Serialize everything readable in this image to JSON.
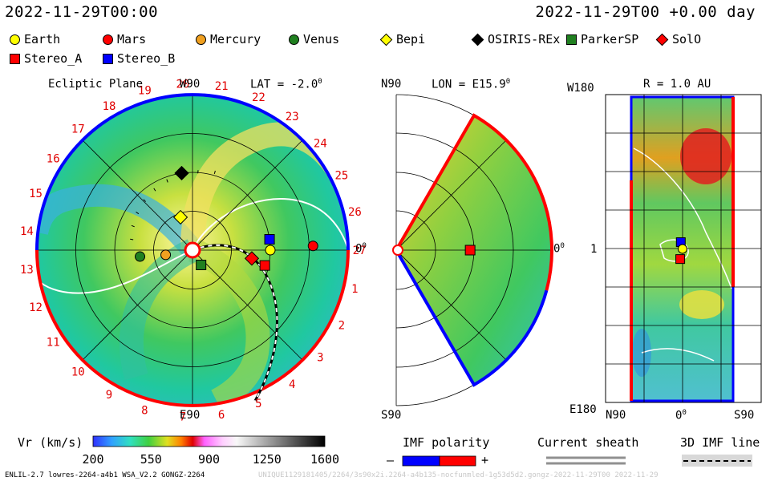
{
  "header": {
    "datetime": "2022-11-29T00:00",
    "relative": "2022-11-29T00 +0.00 day"
  },
  "legend": [
    {
      "name": "Earth",
      "shape": "circle",
      "color": "#ffff00"
    },
    {
      "name": "Mars",
      "shape": "circle",
      "color": "#ff0000"
    },
    {
      "name": "Mercury",
      "shape": "circle",
      "color": "#f0a020"
    },
    {
      "name": "Venus",
      "shape": "circle",
      "color": "#208020"
    },
    {
      "name": "Bepi",
      "shape": "diamond",
      "color": "#ffff00"
    },
    {
      "name": "OSIRIS-REx",
      "shape": "diamond",
      "color": "#000000"
    },
    {
      "name": "ParkerSP",
      "shape": "square",
      "color": "#208020"
    },
    {
      "name": "SolO",
      "shape": "diamond",
      "color": "#ff0000"
    },
    {
      "name": "Stereo_A",
      "shape": "square",
      "color": "#ff0000"
    },
    {
      "name": "Stereo_B",
      "shape": "square",
      "color": "#0000ff"
    }
  ],
  "panels": {
    "ecliptic": {
      "title": "Ecliptic Plane",
      "lat": "LAT = -2.0",
      "deg": "0",
      "top_label": "W90",
      "bottom_label": "E90",
      "right_label": "0",
      "right_sup": "0"
    },
    "meridional": {
      "top_label": "N90",
      "lon": "LON = E15.9",
      "deg": "0",
      "bottom_label": "S90",
      "right_label": "0",
      "right_sup": "0"
    },
    "map": {
      "top_left": "W180",
      "title": "R = 1.0 AU",
      "left_mid": "1",
      "bottom_left": "E180",
      "x_left": "N90",
      "x_mid": "0",
      "x_mid_sup": "0",
      "x_right": "S90"
    }
  },
  "colorbar": {
    "label": "Vr (km/s)",
    "ticks": [
      "200",
      "550",
      "900",
      "1250",
      "1600"
    ]
  },
  "imf": {
    "title": "IMF polarity",
    "minus": "–",
    "plus": "+"
  },
  "sheath": {
    "title": "Current sheath"
  },
  "imfline": {
    "title": "3D IMF line"
  },
  "footer": {
    "left": "ENLIL-2.7 lowres-2264-a4b1 WSA_V2.2 GONGZ-2264",
    "right": "UNIQUE1129181405/2264/3s90x2i.2264-a4b135-nocfunmled-1g53d5d2.gongz-2022-11-29T00   2022-11-29"
  },
  "chart_data": [
    {
      "type": "polar-heatmap",
      "title": "Ecliptic Plane",
      "subtitle": "LAT = -2.0",
      "rim_labels": [
        "1",
        "2",
        "3",
        "4",
        "5",
        "6",
        "7",
        "8",
        "9",
        "10",
        "11",
        "12",
        "13",
        "14",
        "15",
        "16",
        "17",
        "18",
        "19",
        "20",
        "21",
        "22",
        "23",
        "24",
        "25",
        "26",
        "27"
      ],
      "markers": [
        {
          "name": "Earth",
          "r_au": 1.0,
          "angle_deg": 0
        },
        {
          "name": "Mars",
          "r_au": 1.55,
          "angle_deg": 2
        },
        {
          "name": "Mercury",
          "r_au": 0.35,
          "angle_deg": -170
        },
        {
          "name": "Venus",
          "r_au": 0.68,
          "angle_deg": -173
        },
        {
          "name": "Bepi",
          "r_au": 0.45,
          "angle_deg": 110
        },
        {
          "name": "OSIRIS-REx",
          "r_au": 1.0,
          "angle_deg": 98
        },
        {
          "name": "ParkerSP",
          "r_au": 0.22,
          "angle_deg": -60
        },
        {
          "name": "SolO",
          "r_au": 0.77,
          "angle_deg": -8
        },
        {
          "name": "Stereo_A",
          "r_au": 0.95,
          "angle_deg": -12
        },
        {
          "name": "Stereo_B",
          "r_au": 1.0,
          "angle_deg": 8
        }
      ]
    },
    {
      "type": "polar-heatmap",
      "title": "Meridional Plane",
      "subtitle": "LON = E15.9",
      "markers": [
        {
          "name": "Stereo_A",
          "r_au": 0.95,
          "angle_deg": 0
        }
      ]
    },
    {
      "type": "heatmap",
      "title": "R = 1.0 AU",
      "markers": [
        {
          "name": "Stereo_B",
          "lat": 1,
          "lon": 8
        },
        {
          "name": "Earth",
          "lat": -2,
          "lon": 0
        },
        {
          "name": "Stereo_A",
          "lat": 2,
          "lon": -12
        }
      ]
    }
  ]
}
